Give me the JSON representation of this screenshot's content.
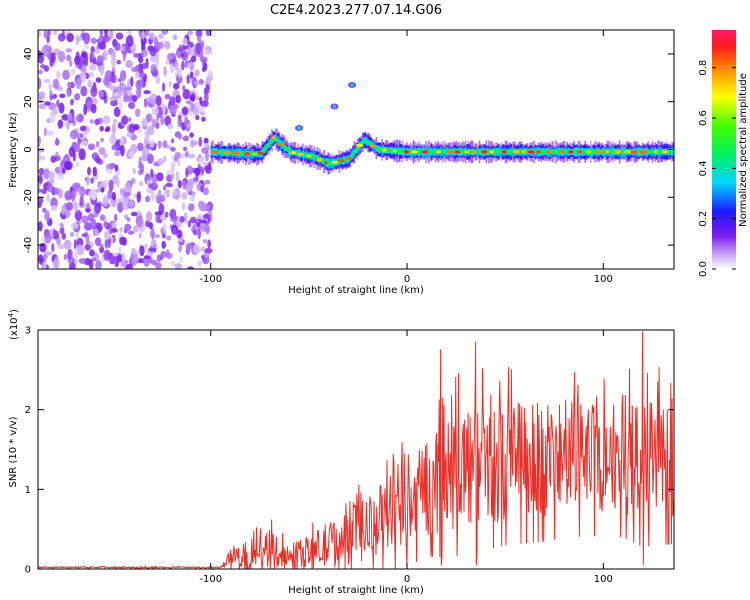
{
  "figure": {
    "title": "C2E4.2023.277.07.14.G06"
  },
  "chart_data": [
    {
      "type": "heatmap",
      "xlabel": "Height of straight line (km)",
      "ylabel": "Frequency (Hz)",
      "xlim": [
        -188,
        136
      ],
      "ylim": [
        -50,
        50
      ],
      "xticks": [
        -100,
        0,
        100
      ],
      "yticks": [
        -40,
        -20,
        0,
        20,
        40
      ],
      "noise_region_x": [
        -188,
        -100
      ],
      "signal_band": [
        {
          "x": -100,
          "y": -1
        },
        {
          "x": -75,
          "y": -2
        },
        {
          "x": -68,
          "y": 5
        },
        {
          "x": -60,
          "y": -1
        },
        {
          "x": -48,
          "y": -3
        },
        {
          "x": -40,
          "y": -6
        },
        {
          "x": -30,
          "y": -4
        },
        {
          "x": -22,
          "y": 4
        },
        {
          "x": -15,
          "y": 0
        },
        {
          "x": 0,
          "y": -1
        },
        {
          "x": 50,
          "y": -1
        },
        {
          "x": 100,
          "y": -1
        },
        {
          "x": 136,
          "y": -1
        }
      ],
      "side_features": [
        {
          "x": -55,
          "y": 9
        },
        {
          "x": -37,
          "y": 18
        },
        {
          "x": -28,
          "y": 27
        }
      ],
      "colorbar": {
        "label": "Normalized spectral amplitude",
        "range": [
          0,
          0.95
        ],
        "ticks": [
          0.0,
          0.2,
          0.4,
          0.6,
          0.8
        ],
        "tick_labels": [
          "0.0",
          "0.2",
          "0.4",
          "0.6",
          "0.8"
        ]
      },
      "grid": false
    },
    {
      "type": "line",
      "xlabel": "Height of straight line (km)",
      "ylabel": "SNR (10 * v/v)",
      "scale_label_base": "(x10",
      "scale_label_exp": "4",
      "scale_label_end": ")",
      "xlim": [
        -188,
        136
      ],
      "ylim": [
        0,
        3
      ],
      "xticks": [
        -100,
        0,
        100
      ],
      "yticks": [
        0,
        1,
        2,
        3
      ],
      "series": [
        {
          "color": "#e8302a",
          "envelope": [
            {
              "x": -188,
              "mean": 0.02,
              "amp": 0.01
            },
            {
              "x": -95,
              "mean": 0.02,
              "amp": 0.01
            },
            {
              "x": -90,
              "mean": 0.1,
              "amp": 0.1
            },
            {
              "x": -80,
              "mean": 0.2,
              "amp": 0.18
            },
            {
              "x": -70,
              "mean": 0.25,
              "amp": 0.25
            },
            {
              "x": -60,
              "mean": 0.15,
              "amp": 0.12
            },
            {
              "x": -50,
              "mean": 0.22,
              "amp": 0.2
            },
            {
              "x": -40,
              "mean": 0.3,
              "amp": 0.3
            },
            {
              "x": -30,
              "mean": 0.4,
              "amp": 0.35
            },
            {
              "x": -20,
              "mean": 0.5,
              "amp": 0.4
            },
            {
              "x": -10,
              "mean": 0.7,
              "amp": 0.5
            },
            {
              "x": 0,
              "mean": 0.8,
              "amp": 0.55
            },
            {
              "x": 10,
              "mean": 1.0,
              "amp": 0.6
            },
            {
              "x": 20,
              "mean": 1.2,
              "amp": 0.75
            },
            {
              "x": 30,
              "mean": 1.3,
              "amp": 0.8
            },
            {
              "x": 50,
              "mean": 1.35,
              "amp": 0.75
            },
            {
              "x": 70,
              "mean": 1.4,
              "amp": 0.75
            },
            {
              "x": 90,
              "mean": 1.4,
              "amp": 0.7
            },
            {
              "x": 110,
              "mean": 1.45,
              "amp": 0.75
            },
            {
              "x": 120,
              "mean": 1.4,
              "amp": 0.8
            },
            {
              "x": 136,
              "mean": 1.3,
              "amp": 0.7
            }
          ],
          "peaks": [
            {
              "x": 17,
              "y": 2.75
            },
            {
              "x": 35,
              "y": 2.85
            },
            {
              "x": 120,
              "y": 2.98
            }
          ]
        }
      ],
      "grid": false
    }
  ]
}
